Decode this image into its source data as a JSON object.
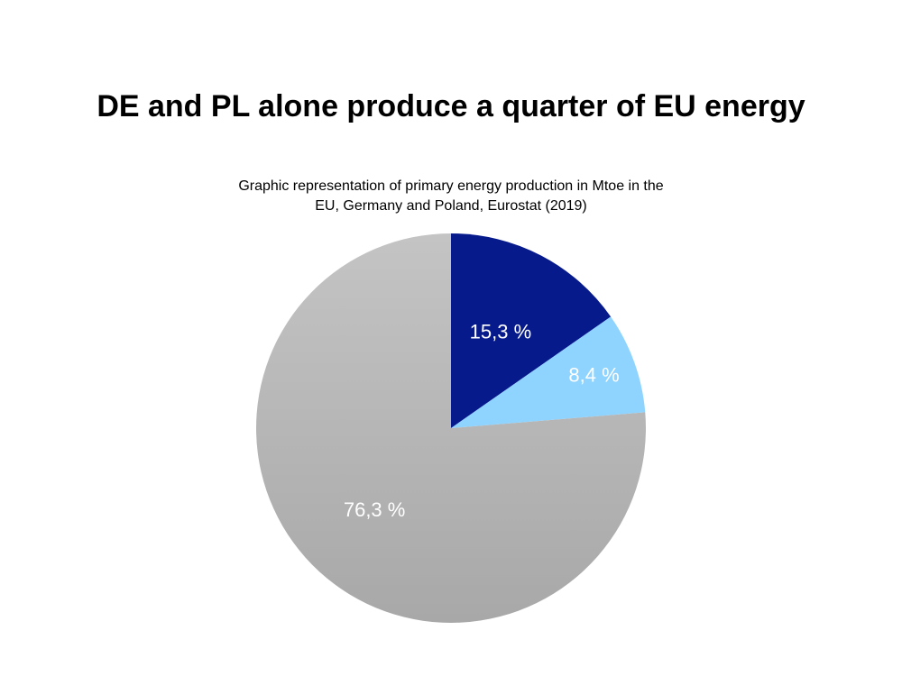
{
  "slide": {
    "title": "DE and PL alone produce a quarter of EU energy"
  },
  "chart_data": {
    "type": "pie",
    "subtitle": "Graphic representation of primary energy production in Mtoe in the EU, Germany and Poland, Eurostat (2019)",
    "slices": [
      {
        "label": "15,3 %",
        "value": 15.3,
        "color": "#071a8c"
      },
      {
        "label": "8,4 %",
        "value": 8.4,
        "color": "#8fd3ff"
      },
      {
        "label": "76,3 %",
        "value": 76.3,
        "color": "#b3b3b3"
      }
    ],
    "start_angle_deg": 0,
    "direction": "clockwise",
    "legend": "none"
  }
}
